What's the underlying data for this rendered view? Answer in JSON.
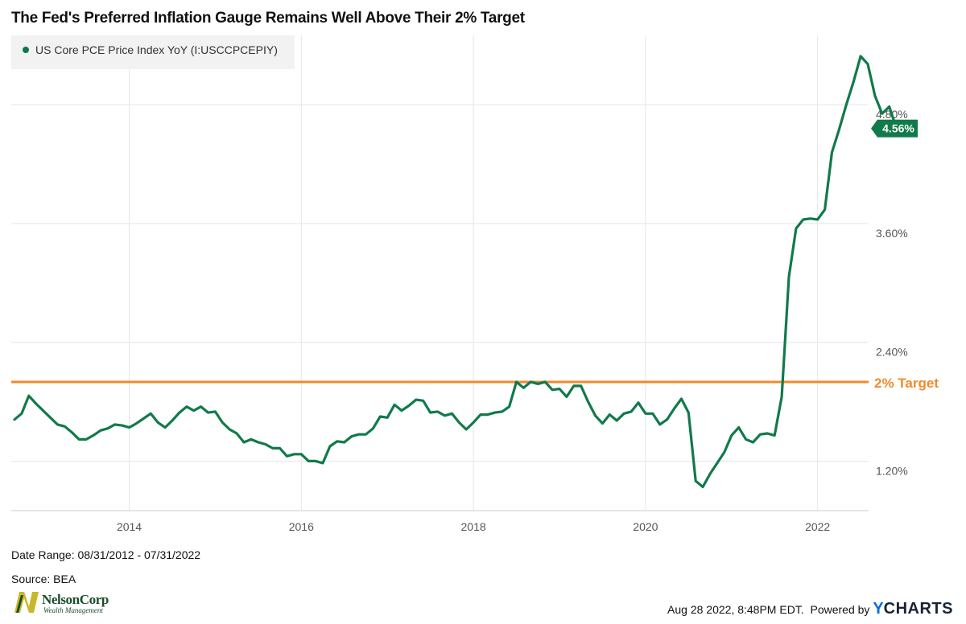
{
  "title": "The Fed's Preferred Inflation Gauge Remains Well Above Their 2% Target",
  "legend": {
    "label": "US Core PCE Price Index YoY (I:USCCPCEPIY)",
    "color": "#0a7a4a"
  },
  "colors": {
    "series": "#117a4a",
    "target": "#f28a2d",
    "grid": "#e6e6e6",
    "axis_text": "#555555"
  },
  "chart_data": {
    "type": "line",
    "title": "The Fed's Preferred Inflation Gauge Remains Well Above Their 2% Target",
    "xlabel": "",
    "ylabel": "",
    "x_range": [
      "2012-08-31",
      "2022-07-31"
    ],
    "ylim": [
      0.7,
      5.5
    ],
    "y_ticks": [
      1.2,
      2.4,
      3.6,
      4.8
    ],
    "y_tick_labels": [
      "1.20%",
      "2.40%",
      "3.60%",
      "4.80%"
    ],
    "x_ticks": [
      2014,
      2016,
      2018,
      2020,
      2022
    ],
    "x_tick_labels": [
      "2014",
      "2016",
      "2018",
      "2020",
      "2022"
    ],
    "grid": true,
    "legend_position": "top-left",
    "series": [
      {
        "name": "US Core PCE Price Index YoY (I:USCCPCEPIY)",
        "values": [
          1.62,
          1.68,
          1.86,
          1.78,
          1.71,
          1.64,
          1.57,
          1.55,
          1.49,
          1.42,
          1.42,
          1.46,
          1.51,
          1.53,
          1.57,
          1.56,
          1.54,
          1.58,
          1.63,
          1.68,
          1.59,
          1.54,
          1.61,
          1.69,
          1.75,
          1.71,
          1.75,
          1.69,
          1.7,
          1.59,
          1.52,
          1.48,
          1.39,
          1.42,
          1.39,
          1.37,
          1.33,
          1.33,
          1.25,
          1.27,
          1.27,
          1.2,
          1.2,
          1.18,
          1.35,
          1.4,
          1.39,
          1.45,
          1.47,
          1.47,
          1.53,
          1.65,
          1.64,
          1.77,
          1.71,
          1.76,
          1.82,
          1.81,
          1.69,
          1.7,
          1.66,
          1.68,
          1.59,
          1.52,
          1.59,
          1.67,
          1.67,
          1.69,
          1.7,
          1.75,
          2.0,
          1.94,
          2.0,
          1.98,
          2.0,
          1.92,
          1.93,
          1.85,
          1.96,
          1.96,
          1.8,
          1.66,
          1.58,
          1.67,
          1.61,
          1.68,
          1.7,
          1.79,
          1.68,
          1.68,
          1.57,
          1.62,
          1.73,
          1.83,
          1.69,
          1.0,
          0.94,
          1.07,
          1.18,
          1.29,
          1.46,
          1.54,
          1.42,
          1.39,
          1.47,
          1.48,
          1.46,
          1.85,
          3.06,
          3.55,
          3.64,
          3.65,
          3.64,
          3.74,
          4.32,
          4.55,
          4.8,
          5.03,
          5.29,
          5.21,
          4.89,
          4.71,
          4.78,
          4.56
        ]
      }
    ],
    "reference_line": {
      "label": "2% Target",
      "value": 2.0
    },
    "last_value_label": "4.56%"
  },
  "footer": {
    "date_range": "Date Range: 08/31/2012 - 07/31/2022",
    "source": "Source: BEA",
    "timestamp": "Aug 28 2022, 8:48PM EDT.",
    "powered_by": "Powered by",
    "ycharts_y": "Y",
    "ycharts_rest": "CHARTS"
  },
  "logo": {
    "name": "NelsonCorp",
    "tagline": "Wealth Management"
  }
}
